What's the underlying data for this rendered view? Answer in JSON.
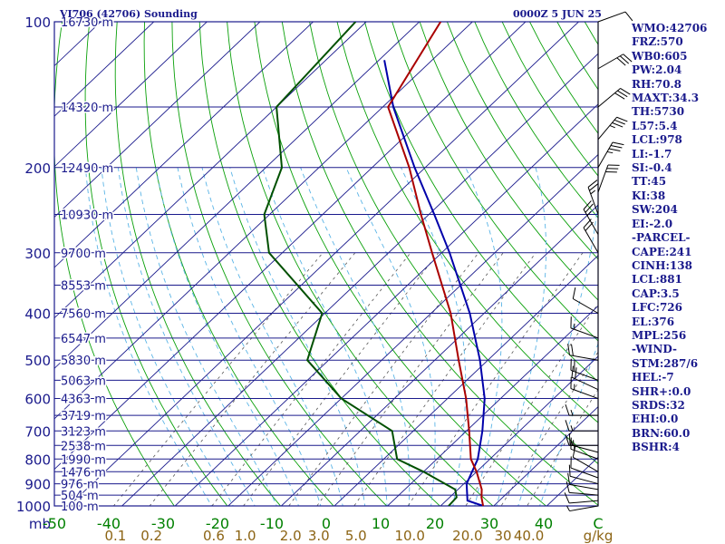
{
  "header": {
    "station": "VI706 (42706) Sounding",
    "time": "0000Z  5 JUN 25"
  },
  "indices": [
    "WMO:42706",
    "FRZ:570",
    "WB0:605",
    "PW:2.04",
    "RH:70.8",
    "MAXT:34.3",
    "TH:5730",
    "L57:5.4",
    "LCL:978",
    "LI:-1.7",
    "SI:-0.4",
    "TT:45",
    "KI:38",
    "SW:204",
    "EI:-2.0",
    "-PARCEL-",
    "CAPE:241",
    "CINH:138",
    "LCL:881",
    "CAP:3.5",
    "LFC:726",
    "EL:376",
    "MPL:256",
    "-WIND-",
    "STM:287/6",
    "HEL:-7",
    "SHR+:0.0",
    "SRDS:32",
    "EHI:0.0",
    "BRN:60.0",
    "BSHR:4"
  ],
  "chart_data": {
    "type": "line",
    "title": "VI706 (42706) Sounding",
    "pressure_unit_label": "mb",
    "x_tick_labels": [
      "-50",
      "-40",
      "-30",
      "-20",
      "-10",
      "0",
      "10",
      "20",
      "30",
      "40",
      "C"
    ],
    "mixing_ratio_label": "g/kg",
    "mixing_ratio_ticks": [
      {
        "label": "0.1",
        "g": 0.1
      },
      {
        "label": "0.2",
        "g": 0.2
      },
      {
        "label": "0.6",
        "g": 0.6
      },
      {
        "label": "1.0",
        "g": 1.0
      },
      {
        "label": "2.0",
        "g": 2.0
      },
      {
        "label": "3.0",
        "g": 3.0
      },
      {
        "label": "5.0",
        "g": 5.0
      },
      {
        "label": "10.0",
        "g": 10.0
      },
      {
        "label": "20.0",
        "g": 20.0
      },
      {
        "label": "30",
        "g": 30.0
      },
      {
        "label": "40.0",
        "g": 40.0
      }
    ],
    "pressure_levels": [
      100,
      200,
      300,
      400,
      500,
      600,
      700,
      800,
      900,
      1000
    ],
    "height_labels": [
      {
        "p": 100,
        "label": "16730 m"
      },
      {
        "p": 150,
        "label": "14320 m"
      },
      {
        "p": 200,
        "label": "12490 m"
      },
      {
        "p": 250,
        "label": "10930 m"
      },
      {
        "p": 300,
        "label": "9700 m"
      },
      {
        "p": 350,
        "label": "8553 m"
      },
      {
        "p": 400,
        "label": "7560 m"
      },
      {
        "p": 450,
        "label": "6547 m"
      },
      {
        "p": 500,
        "label": "5830 m"
      },
      {
        "p": 550,
        "label": "5063 m"
      },
      {
        "p": 600,
        "label": "4363 m"
      },
      {
        "p": 650,
        "label": "3719 m"
      },
      {
        "p": 700,
        "label": "3123 m"
      },
      {
        "p": 750,
        "label": "2538 m"
      },
      {
        "p": 800,
        "label": "1990 m"
      },
      {
        "p": 850,
        "label": "1476 m"
      },
      {
        "p": 900,
        "label": "976 m"
      },
      {
        "p": 950,
        "label": "504 m"
      },
      {
        "p": 1000,
        "label": "100 m"
      }
    ],
    "ylim": [
      1000,
      100
    ],
    "temperature": [
      {
        "p": 1000,
        "t": 28.0
      },
      {
        "p": 960,
        "t": 26.0
      },
      {
        "p": 925,
        "t": 24.5
      },
      {
        "p": 850,
        "t": 20.0
      },
      {
        "p": 800,
        "t": 16.4
      },
      {
        "p": 700,
        "t": 10.5
      },
      {
        "p": 600,
        "t": 3.5
      },
      {
        "p": 500,
        "t": -5.5
      },
      {
        "p": 400,
        "t": -16.3
      },
      {
        "p": 300,
        "t": -31.8
      },
      {
        "p": 250,
        "t": -41.5
      },
      {
        "p": 200,
        "t": -53.0
      },
      {
        "p": 150,
        "t": -69.0
      },
      {
        "p": 100,
        "t": -76.0
      }
    ],
    "dewpoint": [
      {
        "p": 1000,
        "t": 21.5
      },
      {
        "p": 960,
        "t": 21.3
      },
      {
        "p": 925,
        "t": 19.5
      },
      {
        "p": 850,
        "t": 10.0
      },
      {
        "p": 800,
        "t": 2.5
      },
      {
        "p": 700,
        "t": -4.0
      },
      {
        "p": 600,
        "t": -20.0
      },
      {
        "p": 500,
        "t": -34.0
      },
      {
        "p": 400,
        "t": -40.5
      },
      {
        "p": 300,
        "t": -62.5
      },
      {
        "p": 250,
        "t": -71.0
      },
      {
        "p": 200,
        "t": -77.0
      },
      {
        "p": 150,
        "t": -90.0
      },
      {
        "p": 100,
        "t": -92.0
      }
    ],
    "parcel": [
      {
        "p": 1000,
        "t": 28.0
      },
      {
        "p": 975,
        "t": 24.0
      },
      {
        "p": 900,
        "t": 20.5
      },
      {
        "p": 800,
        "t": 17.7
      },
      {
        "p": 700,
        "t": 13.0
      },
      {
        "p": 600,
        "t": 7.0
      },
      {
        "p": 500,
        "t": -1.5
      },
      {
        "p": 400,
        "t": -12.7
      },
      {
        "p": 300,
        "t": -28.5
      },
      {
        "p": 250,
        "t": -39.0
      },
      {
        "p": 200,
        "t": -52.0
      },
      {
        "p": 150,
        "t": -68.0
      },
      {
        "p": 120,
        "t": -79.0
      }
    ],
    "wind_barbs": [
      {
        "p": 1000,
        "dir": 260,
        "spd": 5
      },
      {
        "p": 975,
        "dir": 265,
        "spd": 10
      },
      {
        "p": 950,
        "dir": 275,
        "spd": 10
      },
      {
        "p": 925,
        "dir": 280,
        "spd": 10
      },
      {
        "p": 900,
        "dir": 285,
        "spd": 10
      },
      {
        "p": 875,
        "dir": 290,
        "spd": 10
      },
      {
        "p": 850,
        "dir": 300,
        "spd": 10
      },
      {
        "p": 800,
        "dir": 290,
        "spd": 15
      },
      {
        "p": 775,
        "dir": 285,
        "spd": 15
      },
      {
        "p": 750,
        "dir": 270,
        "spd": 15
      },
      {
        "p": 700,
        "dir": 270,
        "spd": 15
      },
      {
        "p": 650,
        "dir": 270,
        "spd": 15
      },
      {
        "p": 600,
        "dir": 290,
        "spd": 15
      },
      {
        "p": 575,
        "dir": 295,
        "spd": 20
      },
      {
        "p": 550,
        "dir": 290,
        "spd": 20
      },
      {
        "p": 500,
        "dir": 280,
        "spd": 20
      },
      {
        "p": 450,
        "dir": 290,
        "spd": 15
      },
      {
        "p": 400,
        "dir": 300,
        "spd": 10
      },
      {
        "p": 300,
        "dir": 330,
        "spd": 20
      },
      {
        "p": 275,
        "dir": 330,
        "spd": 25
      },
      {
        "p": 250,
        "dir": 340,
        "spd": 25
      },
      {
        "p": 225,
        "dir": 20,
        "spd": 30
      },
      {
        "p": 200,
        "dir": 30,
        "spd": 35
      },
      {
        "p": 175,
        "dir": 40,
        "spd": 35
      },
      {
        "p": 150,
        "dir": 50,
        "spd": 30
      },
      {
        "p": 125,
        "dir": 60,
        "spd": 30
      },
      {
        "p": 100,
        "dir": 70,
        "spd": 10
      }
    ],
    "colors": {
      "isobar": "#1a1a8c",
      "isotherm": "#1a1a8c",
      "dry_adiabat": "#0aa00a",
      "moist_adiabat": "#5ab4e6",
      "mixing_ratio": "#555555",
      "temperature": "#aa0000",
      "dewpoint": "#005000",
      "parcel": "#0000aa",
      "pressure_labels": "#1a1a8c",
      "temp_tick_labels": "#008000",
      "mixing_labels": "#8c6414",
      "header_text": "#1a1a8c"
    }
  }
}
